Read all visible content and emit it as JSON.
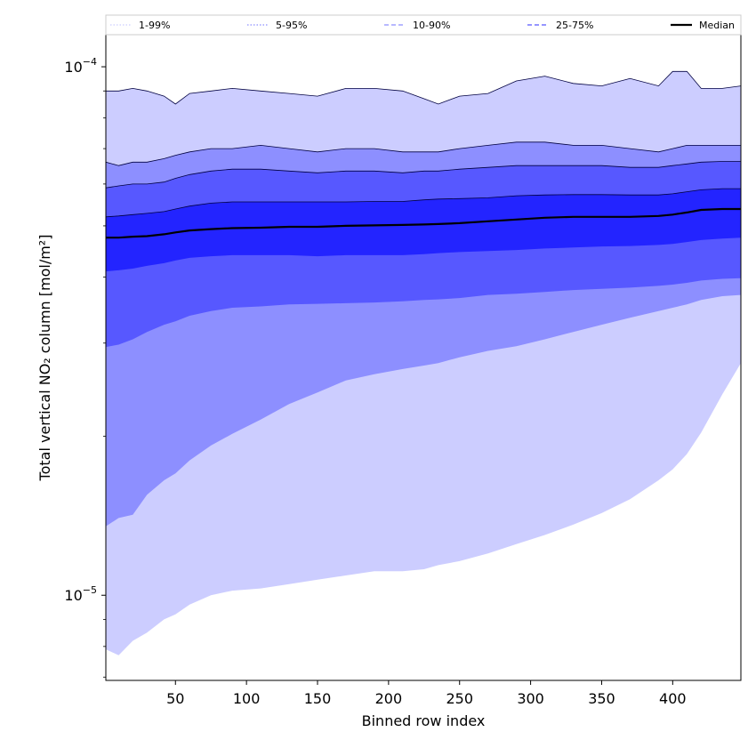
{
  "chart_data": {
    "type": "area",
    "title": "",
    "xlabel": "Binned row index",
    "ylabel": "Total vertical NO₂ column [mol/m²]",
    "xlim": [
      1,
      448
    ],
    "ylim": [
      6.9e-06,
      0.000115
    ],
    "yscale": "log",
    "grid": false,
    "legend_placement": "top, above plot",
    "x_ticks": [
      50,
      100,
      150,
      200,
      250,
      300,
      350,
      400
    ],
    "x_tick_labels": [
      "50",
      "100",
      "150",
      "200",
      "250",
      "300",
      "350",
      "400"
    ],
    "y_ticks": [
      1e-05,
      0.0001
    ],
    "y_tick_labels": [
      {
        "base": "10",
        "exp": "−5"
      },
      {
        "base": "10",
        "exp": "−4"
      }
    ],
    "x": [
      1,
      10,
      20,
      30,
      42,
      50,
      60,
      75,
      90,
      110,
      130,
      150,
      170,
      190,
      210,
      225,
      235,
      250,
      270,
      290,
      310,
      330,
      350,
      370,
      390,
      400,
      410,
      420,
      435,
      448
    ],
    "series": [
      {
        "name": "1-99%",
        "color": "#cccdff",
        "lower": [
          7.9e-06,
          7.7e-06,
          8.2e-06,
          8.5e-06,
          9e-06,
          9.2e-06,
          9.6e-06,
          1e-05,
          1.02e-05,
          1.03e-05,
          1.05e-05,
          1.07e-05,
          1.09e-05,
          1.11e-05,
          1.11e-05,
          1.12e-05,
          1.14e-05,
          1.16e-05,
          1.2e-05,
          1.25e-05,
          1.3e-05,
          1.36e-05,
          1.43e-05,
          1.52e-05,
          1.65e-05,
          1.73e-05,
          1.85e-05,
          2.03e-05,
          2.4e-05,
          2.75e-05
        ],
        "upper": [
          9e-05,
          9e-05,
          9.1e-05,
          9e-05,
          8.8e-05,
          8.5e-05,
          8.9e-05,
          9e-05,
          9.1e-05,
          9e-05,
          8.9e-05,
          8.8e-05,
          9.1e-05,
          9.1e-05,
          9e-05,
          8.7e-05,
          8.5e-05,
          8.8e-05,
          8.9e-05,
          9.4e-05,
          9.6e-05,
          9.3e-05,
          9.2e-05,
          9.5e-05,
          9.2e-05,
          9.8e-05,
          9.8e-05,
          9.1e-05,
          9.1e-05,
          9.2e-05
        ]
      },
      {
        "name": "5-95%",
        "color": "#8d8fff",
        "lower": [
          1.35e-05,
          1.4e-05,
          1.42e-05,
          1.55e-05,
          1.65e-05,
          1.7e-05,
          1.8e-05,
          1.92e-05,
          2.02e-05,
          2.15e-05,
          2.3e-05,
          2.42e-05,
          2.55e-05,
          2.62e-05,
          2.68e-05,
          2.72e-05,
          2.75e-05,
          2.82e-05,
          2.9e-05,
          2.96e-05,
          3.05e-05,
          3.15e-05,
          3.25e-05,
          3.35e-05,
          3.45e-05,
          3.5e-05,
          3.55e-05,
          3.62e-05,
          3.68e-05,
          3.7e-05
        ],
        "upper": [
          6.6e-05,
          6.5e-05,
          6.6e-05,
          6.6e-05,
          6.7e-05,
          6.8e-05,
          6.9e-05,
          7e-05,
          7e-05,
          7.1e-05,
          7e-05,
          6.9e-05,
          7e-05,
          7e-05,
          6.9e-05,
          6.9e-05,
          6.9e-05,
          7e-05,
          7.1e-05,
          7.2e-05,
          7.2e-05,
          7.1e-05,
          7.1e-05,
          7e-05,
          6.9e-05,
          7e-05,
          7.1e-05,
          7.1e-05,
          7.1e-05,
          7.1e-05
        ]
      },
      {
        "name": "10-90%",
        "color": "#5758ff",
        "lower": [
          2.95e-05,
          2.98e-05,
          3.05e-05,
          3.15e-05,
          3.25e-05,
          3.3e-05,
          3.38e-05,
          3.45e-05,
          3.5e-05,
          3.52e-05,
          3.55e-05,
          3.56e-05,
          3.57e-05,
          3.58e-05,
          3.6e-05,
          3.62e-05,
          3.63e-05,
          3.65e-05,
          3.7e-05,
          3.72e-05,
          3.75e-05,
          3.78e-05,
          3.8e-05,
          3.82e-05,
          3.85e-05,
          3.87e-05,
          3.9e-05,
          3.94e-05,
          3.97e-05,
          3.98e-05
        ],
        "upper": [
          5.9e-05,
          5.95e-05,
          6e-05,
          6e-05,
          6.05e-05,
          6.15e-05,
          6.25e-05,
          6.35e-05,
          6.4e-05,
          6.4e-05,
          6.35e-05,
          6.3e-05,
          6.35e-05,
          6.35e-05,
          6.3e-05,
          6.35e-05,
          6.35e-05,
          6.4e-05,
          6.45e-05,
          6.5e-05,
          6.5e-05,
          6.5e-05,
          6.5e-05,
          6.45e-05,
          6.45e-05,
          6.5e-05,
          6.55e-05,
          6.6e-05,
          6.62e-05,
          6.62e-05
        ]
      },
      {
        "name": "25-75%",
        "color": "#2324ff",
        "lower": [
          4.1e-05,
          4.12e-05,
          4.15e-05,
          4.2e-05,
          4.25e-05,
          4.3e-05,
          4.35e-05,
          4.38e-05,
          4.4e-05,
          4.4e-05,
          4.4e-05,
          4.38e-05,
          4.4e-05,
          4.4e-05,
          4.4e-05,
          4.42e-05,
          4.44e-05,
          4.46e-05,
          4.48e-05,
          4.5e-05,
          4.53e-05,
          4.55e-05,
          4.57e-05,
          4.58e-05,
          4.6e-05,
          4.62e-05,
          4.66e-05,
          4.7e-05,
          4.73e-05,
          4.75e-05
        ],
        "upper": [
          5.2e-05,
          5.22e-05,
          5.25e-05,
          5.28e-05,
          5.32e-05,
          5.38e-05,
          5.45e-05,
          5.52e-05,
          5.55e-05,
          5.55e-05,
          5.55e-05,
          5.55e-05,
          5.55e-05,
          5.56e-05,
          5.56e-05,
          5.6e-05,
          5.62e-05,
          5.63e-05,
          5.65e-05,
          5.7e-05,
          5.72e-05,
          5.73e-05,
          5.73e-05,
          5.72e-05,
          5.72e-05,
          5.75e-05,
          5.8e-05,
          5.85e-05,
          5.88e-05,
          5.88e-05
        ]
      },
      {
        "name": "Median",
        "color": "#000000",
        "values": [
          4.75e-05,
          4.75e-05,
          4.77e-05,
          4.78e-05,
          4.82e-05,
          4.86e-05,
          4.9e-05,
          4.93e-05,
          4.95e-05,
          4.96e-05,
          4.98e-05,
          4.98e-05,
          5e-05,
          5.01e-05,
          5.02e-05,
          5.03e-05,
          5.04e-05,
          5.06e-05,
          5.1e-05,
          5.14e-05,
          5.18e-05,
          5.2e-05,
          5.2e-05,
          5.2e-05,
          5.22e-05,
          5.25e-05,
          5.3e-05,
          5.36e-05,
          5.38e-05,
          5.38e-05
        ]
      }
    ],
    "legend": [
      {
        "label": "1-99%",
        "color": "#cccdff",
        "style": "dotted"
      },
      {
        "label": "5-95%",
        "color": "#8d8fff",
        "style": "dotted"
      },
      {
        "label": "10-90%",
        "color": "#8d8fff",
        "style": "dashed"
      },
      {
        "label": "25-75%",
        "color": "#5758ff",
        "style": "dashed"
      },
      {
        "label": "Median",
        "color": "#000000",
        "style": "solid"
      }
    ]
  }
}
